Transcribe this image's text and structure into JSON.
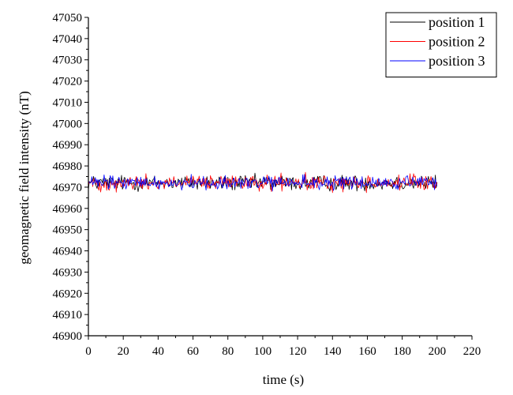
{
  "chart_data": {
    "type": "line",
    "title": "",
    "xlabel": "time (s)",
    "ylabel": "geomagnetic field intensity (nT)",
    "xlim": [
      0,
      220
    ],
    "ylim": [
      46900,
      47050
    ],
    "xticks": [
      0,
      20,
      40,
      60,
      80,
      100,
      120,
      140,
      160,
      180,
      200,
      220
    ],
    "yticks": [
      46900,
      46910,
      46920,
      46930,
      46940,
      46950,
      46960,
      46970,
      46980,
      46990,
      47000,
      47010,
      47020,
      47030,
      47040,
      47050
    ],
    "grid": false,
    "legend_position": "top-right",
    "sample_step": 0.5,
    "series": [
      {
        "name": "position 1",
        "color": "#000000",
        "x_range": [
          0,
          200
        ],
        "mean": 46972,
        "range": [
          46966,
          46978
        ]
      },
      {
        "name": "position 2",
        "color": "#ff0000",
        "x_range": [
          0,
          200
        ],
        "mean": 46972,
        "range": [
          46966,
          46978
        ]
      },
      {
        "name": "position 3",
        "color": "#0000ff",
        "x_range": [
          0,
          200
        ],
        "mean": 46972,
        "range": [
          46966,
          46977
        ]
      }
    ]
  }
}
